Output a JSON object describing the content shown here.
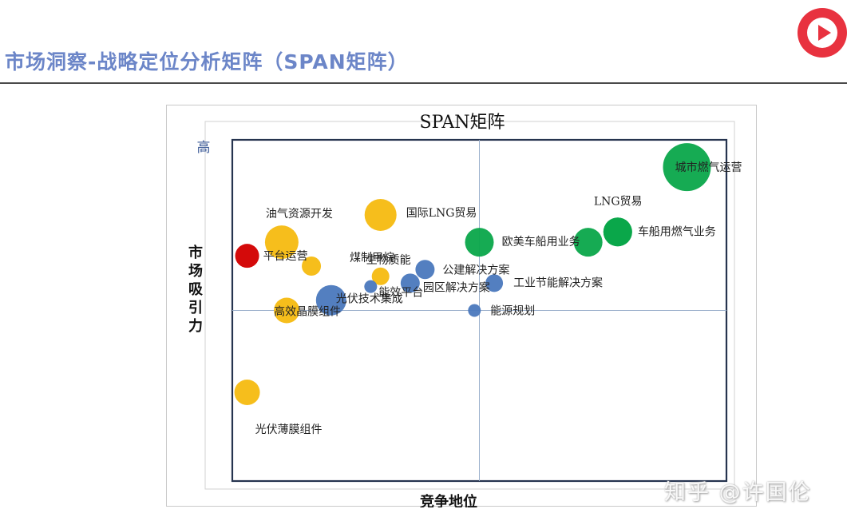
{
  "slide": {
    "title": "市场洞察-战略定位分析矩阵（SPAN矩阵）",
    "watermark": "知乎 @许国伦"
  },
  "colors": {
    "title": "#6c86c8",
    "green": "#0aa64a",
    "yellow": "#f5bb10",
    "blue": "#4a78bd",
    "red": "#d40a0a",
    "frame": "#26344f"
  },
  "chart_data": {
    "type": "bubble",
    "title": "SPAN矩阵",
    "xlabel": "竞争地位",
    "ylabel": "市场吸引力",
    "y_high_label": "高",
    "xlim": [
      0,
      10
    ],
    "ylim": [
      0,
      10
    ],
    "quadrant_divider": {
      "x": 5,
      "y": 5
    },
    "grid": false,
    "series": [
      {
        "color": "green",
        "points": [
          {
            "label": "城市燃气运营",
            "x": 9.2,
            "y": 9.2,
            "size": 30
          },
          {
            "label": "LNG贸易",
            "x": 7.8,
            "y": 7.3,
            "size": 18
          },
          {
            "label": "欧美车船用业务",
            "x": 7.2,
            "y": 7.0,
            "size": 18
          },
          {
            "label": "车船用燃气业务",
            "x": 7.8,
            "y": 7.3,
            "size": 18
          },
          {
            "label": "",
            "x": 5.0,
            "y": 7.0,
            "size": 18
          }
        ]
      },
      {
        "color": "yellow",
        "points": [
          {
            "label": "国际LNG贸易",
            "x": 3.0,
            "y": 7.8,
            "size": 20
          },
          {
            "label": "油气资源开发",
            "x": 1.0,
            "y": 7.0,
            "size": 21
          },
          {
            "label": "煤制甲烷",
            "x": 1.6,
            "y": 6.3,
            "size": 12
          },
          {
            "label": "生物质能",
            "x": 3.0,
            "y": 6.0,
            "size": 11
          },
          {
            "label": "高效晶膜组件",
            "x": 1.1,
            "y": 5.0,
            "size": 16
          },
          {
            "label": "光伏薄膜组件",
            "x": 0.3,
            "y": 2.6,
            "size": 16
          }
        ]
      },
      {
        "color": "blue",
        "points": [
          {
            "label": "公建解决方案",
            "x": 3.9,
            "y": 6.2,
            "size": 12
          },
          {
            "label": "园区解决方案",
            "x": 3.6,
            "y": 5.8,
            "size": 12
          },
          {
            "label": "工业节能解决方案",
            "x": 5.3,
            "y": 5.8,
            "size": 11
          },
          {
            "label": "能效平台",
            "x": 2.8,
            "y": 5.7,
            "size": 8
          },
          {
            "label": "光伏技术集成",
            "x": 2.0,
            "y": 5.3,
            "size": 19
          },
          {
            "label": "能源规划",
            "x": 4.9,
            "y": 5.0,
            "size": 8
          }
        ]
      },
      {
        "color": "red",
        "points": [
          {
            "label": "平台运营",
            "x": 0.3,
            "y": 6.6,
            "size": 15
          }
        ]
      }
    ]
  }
}
